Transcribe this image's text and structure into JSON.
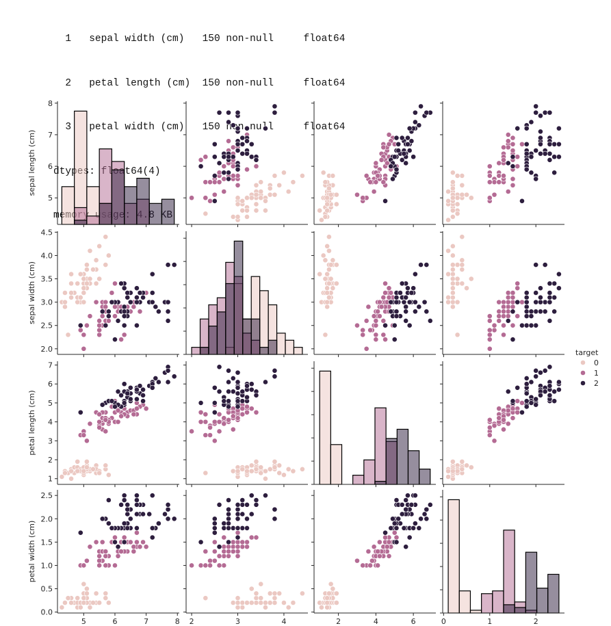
{
  "console": {
    "rows": [
      {
        "index": "1",
        "column": "sepal width (cm)",
        "count": "150 non-null",
        "dtype": "float64"
      },
      {
        "index": "2",
        "column": "petal length (cm)",
        "count": "150 non-null",
        "dtype": "float64"
      },
      {
        "index": "3",
        "column": "petal width (cm)",
        "count": "150 non-null",
        "dtype": "float64"
      }
    ],
    "dtypes_line": "dtypes: float64(4)",
    "memory_line": "memory usage: 4.8 KB"
  },
  "chart_data": {
    "type": "scatter",
    "subtype": "pairplot",
    "title": "",
    "variables": [
      "sepal length (cm)",
      "sepal width (cm)",
      "petal length (cm)",
      "petal width (cm)"
    ],
    "axis_ranges": {
      "sepal length (cm)": [
        4.16,
        8.06
      ],
      "sepal width (cm)": [
        1.88,
        4.52
      ],
      "petal length (cm)": [
        0.7,
        7.2
      ],
      "petal width (cm)": [
        -0.02,
        2.62
      ]
    },
    "ticks": {
      "sepal length (cm)": [
        5,
        6,
        7,
        8
      ],
      "sepal width (cm)": [
        2.0,
        2.5,
        3.0,
        3.5,
        4.0,
        4.5
      ],
      "petal length (cm)": [
        1,
        2,
        3,
        4,
        5,
        6,
        7
      ],
      "petal width (cm)": [
        0.0,
        0.5,
        1.0,
        1.5,
        2.0,
        2.5
      ]
    },
    "x_ticks": {
      "sepal length (cm)": [
        "5",
        "6",
        "7",
        "8"
      ],
      "sepal width (cm)": [
        "2",
        "3",
        "4"
      ],
      "petal length (cm)": [
        "2",
        "4",
        "6"
      ],
      "petal width (cm)": [
        "0",
        "1",
        "2"
      ]
    },
    "y_ticks": {
      "sepal length (cm)": [
        "5",
        "6",
        "7",
        "8"
      ],
      "sepal width (cm)": [
        "2.0",
        "2.5",
        "3.0",
        "3.5",
        "4.0",
        "4.5"
      ],
      "petal length (cm)": [
        "1",
        "2",
        "3",
        "4",
        "5",
        "6",
        "7"
      ],
      "petal width (cm)": [
        "0.0",
        "0.5",
        "1.0",
        "1.5",
        "2.0",
        "2.5"
      ]
    },
    "x_tick_values": {
      "sepal length (cm)": [
        5,
        6,
        7,
        8
      ],
      "sepal width (cm)": [
        2,
        3,
        4
      ],
      "petal length (cm)": [
        2,
        4,
        6
      ],
      "petal width (cm)": [
        0,
        1,
        2
      ]
    },
    "diagonal": "histogram",
    "hue": "target",
    "legend": {
      "title": "target",
      "labels": [
        "0",
        "1",
        "2"
      ],
      "placement": "right"
    },
    "palette": {
      "0": "#ebc8c2",
      "1": "#b46b94",
      "2": "#2d1e3e"
    },
    "hist_palette": {
      "0": "#f3e4e1",
      "1": "#d2adc4",
      "2": "#8e8598"
    },
    "grid": false,
    "series": [
      {
        "name": "0",
        "sepal_length": [
          5.1,
          4.9,
          4.7,
          4.6,
          5.0,
          5.4,
          4.6,
          5.0,
          4.4,
          4.9,
          5.4,
          4.8,
          4.8,
          4.3,
          5.8,
          5.7,
          5.4,
          5.1,
          5.7,
          5.1,
          5.4,
          5.1,
          4.6,
          5.1,
          4.8,
          5.0,
          5.0,
          5.2,
          5.2,
          4.7,
          4.8,
          5.4,
          5.2,
          5.5,
          4.9,
          5.0,
          5.5,
          4.9,
          4.4,
          5.1,
          5.0,
          4.5,
          4.4,
          5.0,
          5.1,
          4.8,
          5.1,
          4.6,
          5.3,
          5.0
        ],
        "sepal_width": [
          3.5,
          3.0,
          3.2,
          3.1,
          3.6,
          3.9,
          3.4,
          3.4,
          2.9,
          3.1,
          3.7,
          3.4,
          3.0,
          3.0,
          4.0,
          4.4,
          3.9,
          3.5,
          3.8,
          3.8,
          3.4,
          3.7,
          3.6,
          3.3,
          3.4,
          3.0,
          3.4,
          3.5,
          3.4,
          3.2,
          3.1,
          3.4,
          4.1,
          4.2,
          3.1,
          3.2,
          3.5,
          3.6,
          3.0,
          3.4,
          3.5,
          2.3,
          3.2,
          3.5,
          3.8,
          3.0,
          3.8,
          3.2,
          3.7,
          3.3
        ],
        "petal_length": [
          1.4,
          1.4,
          1.3,
          1.5,
          1.4,
          1.7,
          1.4,
          1.5,
          1.4,
          1.5,
          1.5,
          1.6,
          1.4,
          1.1,
          1.2,
          1.5,
          1.3,
          1.4,
          1.7,
          1.5,
          1.7,
          1.5,
          1.0,
          1.7,
          1.9,
          1.6,
          1.6,
          1.5,
          1.4,
          1.6,
          1.6,
          1.5,
          1.5,
          1.4,
          1.5,
          1.2,
          1.3,
          1.4,
          1.3,
          1.5,
          1.3,
          1.3,
          1.3,
          1.6,
          1.9,
          1.4,
          1.6,
          1.4,
          1.5,
          1.4
        ],
        "petal_width": [
          0.2,
          0.2,
          0.2,
          0.2,
          0.2,
          0.4,
          0.3,
          0.2,
          0.2,
          0.1,
          0.2,
          0.2,
          0.1,
          0.1,
          0.2,
          0.4,
          0.4,
          0.3,
          0.3,
          0.3,
          0.2,
          0.4,
          0.2,
          0.5,
          0.2,
          0.2,
          0.4,
          0.2,
          0.2,
          0.2,
          0.2,
          0.4,
          0.1,
          0.2,
          0.2,
          0.2,
          0.2,
          0.1,
          0.2,
          0.2,
          0.3,
          0.3,
          0.2,
          0.6,
          0.4,
          0.3,
          0.2,
          0.2,
          0.2,
          0.2
        ]
      },
      {
        "name": "1",
        "sepal_length": [
          7.0,
          6.4,
          6.9,
          5.5,
          6.5,
          5.7,
          6.3,
          4.9,
          6.6,
          5.2,
          5.0,
          5.9,
          6.0,
          6.1,
          5.6,
          6.7,
          5.6,
          5.8,
          6.2,
          5.6,
          5.9,
          6.1,
          6.3,
          6.1,
          6.4,
          6.6,
          6.8,
          6.7,
          6.0,
          5.7,
          5.5,
          5.5,
          5.8,
          6.0,
          5.4,
          6.0,
          6.7,
          6.3,
          5.6,
          5.5,
          5.5,
          6.1,
          5.8,
          5.0,
          5.6,
          5.7,
          5.7,
          6.2,
          5.1,
          5.7
        ],
        "sepal_width": [
          3.2,
          3.2,
          3.1,
          2.3,
          2.8,
          2.8,
          3.3,
          2.4,
          2.9,
          2.7,
          2.0,
          3.0,
          2.2,
          2.9,
          2.9,
          3.1,
          3.0,
          2.7,
          2.2,
          2.5,
          3.2,
          2.8,
          2.5,
          2.8,
          2.9,
          3.0,
          2.8,
          3.0,
          2.9,
          2.6,
          2.4,
          2.4,
          2.7,
          2.7,
          3.0,
          3.4,
          3.1,
          2.3,
          3.0,
          2.5,
          2.6,
          3.0,
          2.6,
          2.3,
          2.7,
          3.0,
          2.9,
          2.9,
          2.5,
          2.8
        ],
        "petal_length": [
          4.7,
          4.5,
          4.9,
          4.0,
          4.6,
          4.5,
          4.7,
          3.3,
          4.6,
          3.9,
          3.5,
          4.2,
          4.0,
          4.7,
          3.6,
          4.4,
          4.5,
          4.1,
          4.5,
          3.9,
          4.8,
          4.0,
          4.9,
          4.7,
          4.3,
          4.4,
          4.8,
          5.0,
          4.5,
          3.5,
          3.8,
          3.7,
          3.9,
          5.1,
          4.5,
          4.5,
          4.7,
          4.4,
          4.1,
          4.0,
          4.4,
          4.6,
          4.0,
          3.3,
          4.2,
          4.2,
          4.2,
          4.3,
          3.0,
          4.1
        ],
        "petal_width": [
          1.4,
          1.5,
          1.5,
          1.3,
          1.5,
          1.3,
          1.6,
          1.0,
          1.3,
          1.4,
          1.0,
          1.5,
          1.0,
          1.4,
          1.3,
          1.4,
          1.5,
          1.0,
          1.5,
          1.1,
          1.8,
          1.3,
          1.5,
          1.2,
          1.3,
          1.4,
          1.4,
          1.7,
          1.5,
          1.0,
          1.1,
          1.0,
          1.2,
          1.6,
          1.5,
          1.6,
          1.5,
          1.3,
          1.3,
          1.3,
          1.2,
          1.4,
          1.2,
          1.0,
          1.3,
          1.2,
          1.3,
          1.3,
          1.1,
          1.3
        ]
      },
      {
        "name": "2",
        "sepal_length": [
          6.3,
          5.8,
          7.1,
          6.3,
          6.5,
          7.6,
          4.9,
          7.3,
          6.7,
          7.2,
          6.5,
          6.4,
          6.8,
          5.7,
          5.8,
          6.4,
          6.5,
          7.7,
          7.7,
          6.0,
          6.9,
          5.6,
          7.7,
          6.3,
          6.7,
          7.2,
          6.2,
          6.1,
          6.4,
          7.2,
          7.4,
          7.9,
          6.4,
          6.3,
          6.1,
          7.7,
          6.3,
          6.4,
          6.0,
          6.9,
          6.7,
          6.9,
          5.8,
          6.8,
          6.7,
          6.7,
          6.3,
          6.5,
          6.2,
          5.9
        ],
        "sepal_width": [
          3.3,
          2.7,
          3.0,
          2.9,
          3.0,
          3.0,
          2.5,
          2.9,
          2.5,
          3.6,
          3.2,
          2.7,
          3.0,
          2.5,
          2.8,
          3.2,
          3.0,
          3.8,
          2.6,
          2.2,
          3.2,
          2.8,
          2.8,
          2.7,
          3.3,
          3.2,
          2.8,
          3.0,
          2.8,
          3.0,
          2.8,
          3.8,
          2.8,
          2.8,
          2.6,
          3.0,
          3.4,
          3.1,
          3.0,
          3.1,
          3.1,
          3.1,
          2.7,
          3.2,
          3.3,
          3.0,
          2.5,
          3.0,
          3.4,
          3.0
        ],
        "petal_length": [
          6.0,
          5.1,
          5.9,
          5.6,
          5.8,
          6.6,
          4.5,
          6.3,
          5.8,
          6.1,
          5.1,
          5.3,
          5.5,
          5.0,
          5.1,
          5.3,
          5.5,
          6.7,
          6.9,
          5.0,
          5.7,
          4.9,
          6.7,
          4.9,
          5.7,
          6.0,
          4.8,
          4.9,
          5.6,
          5.8,
          6.1,
          6.4,
          5.6,
          5.1,
          5.6,
          6.1,
          5.6,
          5.5,
          4.8,
          5.4,
          5.6,
          5.1,
          5.1,
          5.9,
          5.7,
          5.2,
          5.0,
          5.2,
          5.4,
          5.1
        ],
        "petal_width": [
          2.5,
          1.9,
          2.1,
          1.8,
          2.2,
          2.1,
          1.7,
          1.8,
          1.8,
          2.5,
          2.0,
          1.9,
          2.1,
          2.0,
          2.4,
          2.3,
          1.8,
          2.2,
          2.3,
          1.5,
          2.3,
          2.0,
          2.0,
          1.8,
          2.1,
          1.8,
          1.8,
          1.8,
          2.1,
          1.6,
          1.9,
          2.0,
          2.2,
          1.5,
          1.4,
          2.3,
          2.4,
          1.8,
          1.8,
          2.1,
          2.4,
          2.3,
          1.9,
          2.3,
          2.5,
          2.3,
          1.9,
          2.0,
          2.3,
          1.8
        ]
      }
    ]
  }
}
